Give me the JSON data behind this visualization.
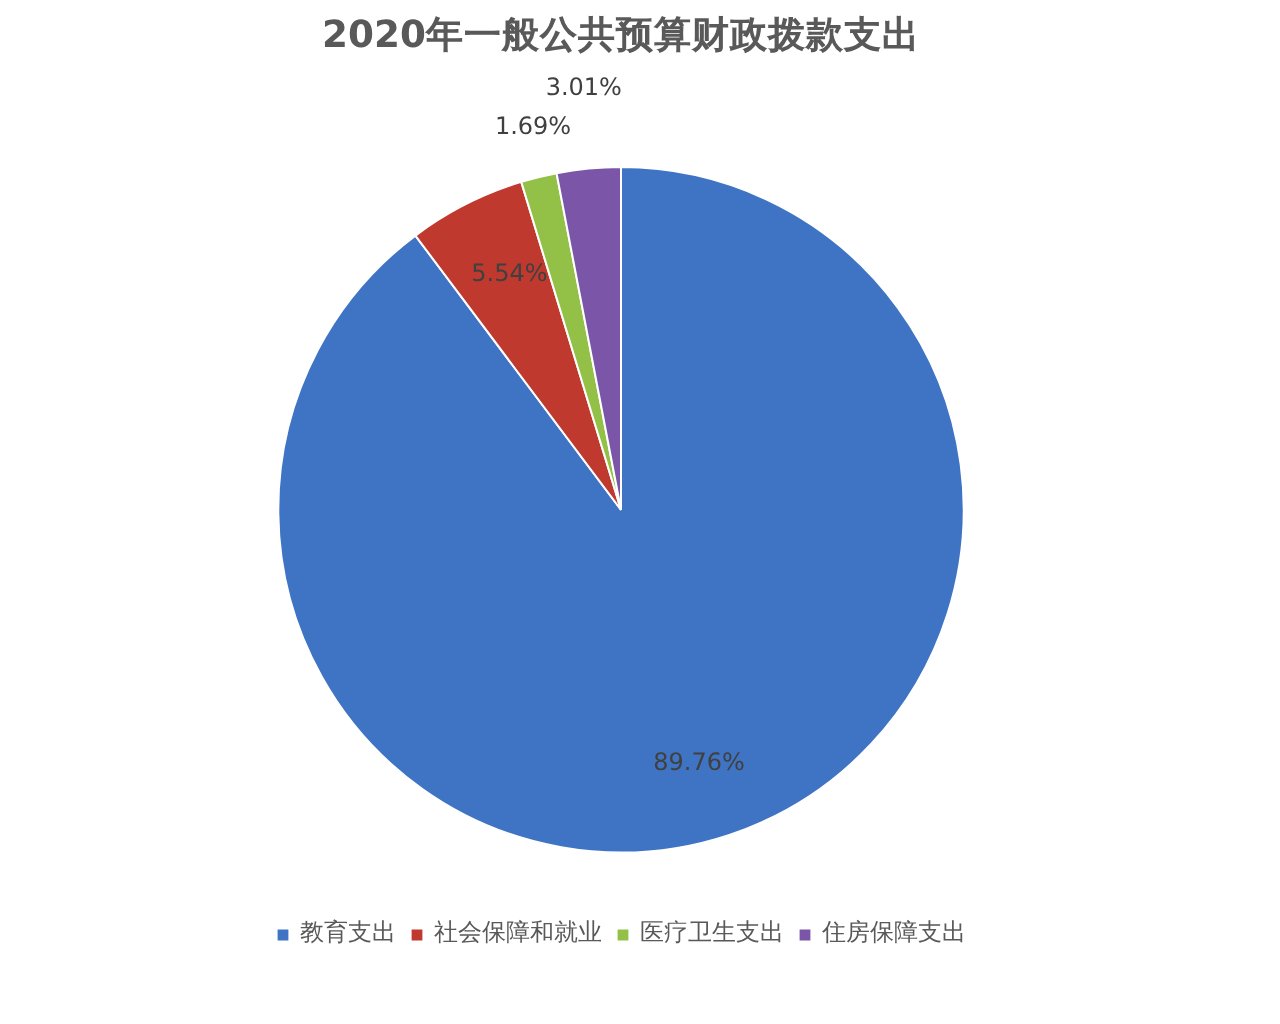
{
  "chart_data": {
    "type": "pie",
    "title": "2020年一般公共预算财政拨款支出",
    "categories": [
      "教育支出",
      "社会保障和就业",
      "医疗卫生支出",
      "住房保障支出"
    ],
    "values": [
      89.76,
      5.54,
      1.69,
      3.01
    ],
    "colors": [
      "#3f74c4",
      "#c0392f",
      "#93c047",
      "#7b55a8"
    ],
    "value_labels": [
      "89.76%",
      "5.54%",
      "1.69%",
      "3.01%"
    ],
    "legend": "bottom"
  }
}
